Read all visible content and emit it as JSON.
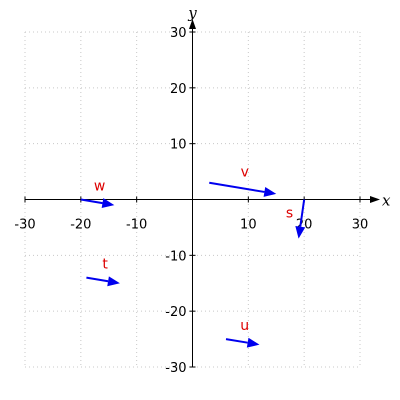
{
  "chart_data": {
    "type": "vector-field",
    "title": "",
    "xlabel": "x",
    "ylabel": "y",
    "xlim": [
      -30,
      30
    ],
    "ylim": [
      -30,
      30
    ],
    "xticks": [
      -30,
      -20,
      -10,
      10,
      20,
      30
    ],
    "yticks": [
      -30,
      -20,
      -10,
      10,
      20,
      30
    ],
    "grid": true,
    "colors": {
      "vector": "#0000ee",
      "label": "#dd0000",
      "axis": "#000000",
      "grid": "#c8c8c8"
    },
    "vectors": [
      {
        "name": "v",
        "start": [
          3,
          3
        ],
        "end": [
          15,
          1
        ]
      },
      {
        "name": "w",
        "start": [
          -20,
          0
        ],
        "end": [
          -14,
          -1
        ]
      },
      {
        "name": "s",
        "start": [
          20,
          0
        ],
        "end": [
          19,
          -7
        ]
      },
      {
        "name": "t",
        "start": [
          -19,
          -14
        ],
        "end": [
          -13,
          -15
        ]
      },
      {
        "name": "u",
        "start": [
          6,
          -25
        ],
        "end": [
          12,
          -26
        ]
      }
    ]
  }
}
